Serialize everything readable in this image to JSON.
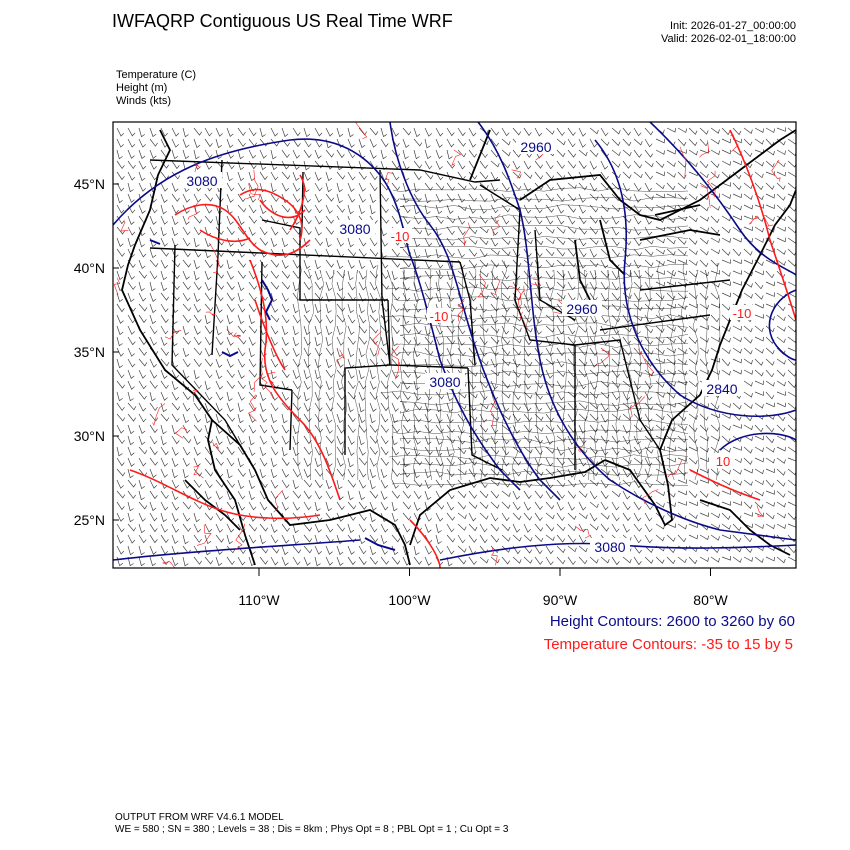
{
  "header": {
    "title": "IWFAQRP Contiguous US Real Time WRF",
    "init": "Init: 2026-01-27_00:00:00",
    "valid": "Valid: 2026-02-01_18:00:00"
  },
  "variables": {
    "temperature": "Temperature   (C)",
    "height": "Height   (m)",
    "winds": "Winds   (kts)"
  },
  "axes": {
    "lat_labels": [
      "45°N",
      "40°N",
      "35°N",
      "30°N",
      "25°N"
    ],
    "lat_values": [
      45,
      40,
      35,
      30,
      25
    ],
    "lon_labels": [
      "110°W",
      "100°W",
      "90°W",
      "80°W"
    ],
    "lon_values": [
      -110,
      -100,
      -90,
      -80
    ]
  },
  "contour_labels": {
    "height": [
      "3080",
      "3080",
      "2960",
      "2960",
      "3080",
      "2840",
      "3080"
    ],
    "temperature": [
      "-10",
      "-10",
      "10",
      "-10"
    ]
  },
  "legend": {
    "height": "Height Contours: 2600 to 3260 by 60",
    "temperature": "Temperature Contours: -35 to 15 by 5"
  },
  "footer": {
    "line1": "OUTPUT FROM WRF V4.6.1 MODEL",
    "line2": "WE = 580 ; SN = 380 ; Levels = 38 ; Dis = 8km ; Phys Opt = 8 ; PBL Opt = 1 ; Cu Opt = 3"
  },
  "colors": {
    "height_contour": "#0b0b8a",
    "temperature_contour": "#ff1a1a",
    "map_lines": "#000000"
  }
}
